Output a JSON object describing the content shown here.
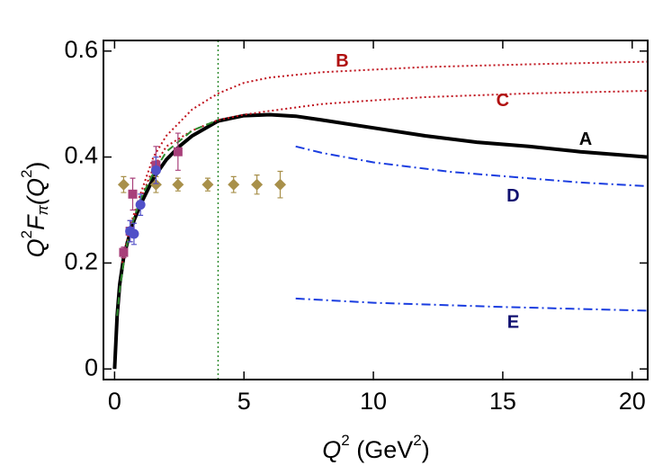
{
  "chart_data": {
    "type": "line",
    "x_label": [
      "Q",
      "2",
      " (GeV",
      "2",
      ")"
    ],
    "y_label": [
      "Q",
      "2",
      "F",
      "π",
      "(Q",
      "2",
      ")"
    ],
    "xlim": [
      -0.43,
      20.6
    ],
    "ylim": [
      -0.02,
      0.62
    ],
    "xticks": [
      0,
      5,
      10,
      15,
      20
    ],
    "yticks": [
      0,
      0.2,
      0.4,
      0.6
    ],
    "vline": {
      "x": 4,
      "color": "#2e8b2e"
    },
    "series": [
      {
        "name": "A",
        "type": "line",
        "color": "#000000",
        "dash": "solid",
        "x": [
          0,
          0.1,
          0.2,
          0.35,
          0.5,
          0.75,
          1,
          1.5,
          2,
          2.5,
          3,
          4,
          5,
          6,
          7,
          8,
          10,
          12,
          14,
          16,
          18,
          20.6
        ],
        "values": [
          0,
          0.1,
          0.16,
          0.21,
          0.24,
          0.28,
          0.31,
          0.36,
          0.395,
          0.42,
          0.44,
          0.468,
          0.478,
          0.48,
          0.477,
          0.47,
          0.455,
          0.44,
          0.428,
          0.42,
          0.41,
          0.4
        ]
      },
      {
        "name": "B",
        "type": "line",
        "color": "#c0141e",
        "dash": "dot",
        "x": [
          0.3,
          0.6,
          1,
          1.5,
          2,
          3,
          4,
          5,
          6,
          8,
          10,
          12,
          16,
          20.6
        ],
        "values": [
          0.2,
          0.27,
          0.33,
          0.4,
          0.44,
          0.49,
          0.52,
          0.54,
          0.55,
          0.56,
          0.565,
          0.57,
          0.575,
          0.58
        ]
      },
      {
        "name": "C",
        "type": "line",
        "color": "#c0141e",
        "dash": "dot",
        "x": [
          0.3,
          0.6,
          1,
          1.5,
          2,
          3,
          4,
          5,
          6,
          8,
          10,
          12,
          16,
          20.6
        ],
        "values": [
          0.2,
          0.26,
          0.32,
          0.38,
          0.42,
          0.45,
          0.47,
          0.48,
          0.487,
          0.5,
          0.507,
          0.513,
          0.52,
          0.525
        ]
      },
      {
        "name": "D",
        "type": "line",
        "color": "#1a3de0",
        "dash": "dashdot",
        "x": [
          7,
          8,
          10,
          13,
          16,
          18,
          20.6
        ],
        "values": [
          0.42,
          0.408,
          0.39,
          0.372,
          0.36,
          0.352,
          0.345
        ]
      },
      {
        "name": "E",
        "type": "line",
        "color": "#1a3de0",
        "dash": "dashdot",
        "x": [
          7,
          10,
          15,
          20.6
        ],
        "values": [
          0.133,
          0.125,
          0.117,
          0.11
        ]
      },
      {
        "type": "line",
        "color": "#2e8b2e",
        "dash": "dash",
        "x": [
          0.1,
          0.2,
          0.35,
          0.5,
          0.75,
          1,
          1.5,
          2,
          3,
          4
        ],
        "values": [
          0.1,
          0.15,
          0.2,
          0.24,
          0.285,
          0.32,
          0.37,
          0.41,
          0.45,
          0.47
        ]
      },
      {
        "type": "scatter",
        "marker": "diamond",
        "color": "#a8904a",
        "x": [
          0.35,
          1.6,
          2.45,
          3.6,
          4.6,
          5.5,
          6.4
        ],
        "values": [
          0.348,
          0.348,
          0.348,
          0.348,
          0.348,
          0.348,
          0.348
        ],
        "errors": [
          0.015,
          0.015,
          0.012,
          0.012,
          0.015,
          0.018,
          0.025
        ]
      },
      {
        "type": "scatter",
        "marker": "square",
        "color": "#a8407a",
        "x": [
          0.35,
          0.6,
          0.7,
          1.6,
          2.45
        ],
        "values": [
          0.22,
          0.26,
          0.33,
          0.385,
          0.41
        ],
        "errors": [
          0.01,
          0.02,
          0.03,
          0.035,
          0.035
        ]
      },
      {
        "type": "scatter",
        "marker": "circle",
        "color": "#5050c8",
        "x": [
          0.6,
          0.75,
          1.0,
          1.6
        ],
        "values": [
          0.26,
          0.255,
          0.31,
          0.375
        ],
        "errors": [
          0.02,
          0.02,
          0.02,
          0.025
        ]
      }
    ]
  }
}
